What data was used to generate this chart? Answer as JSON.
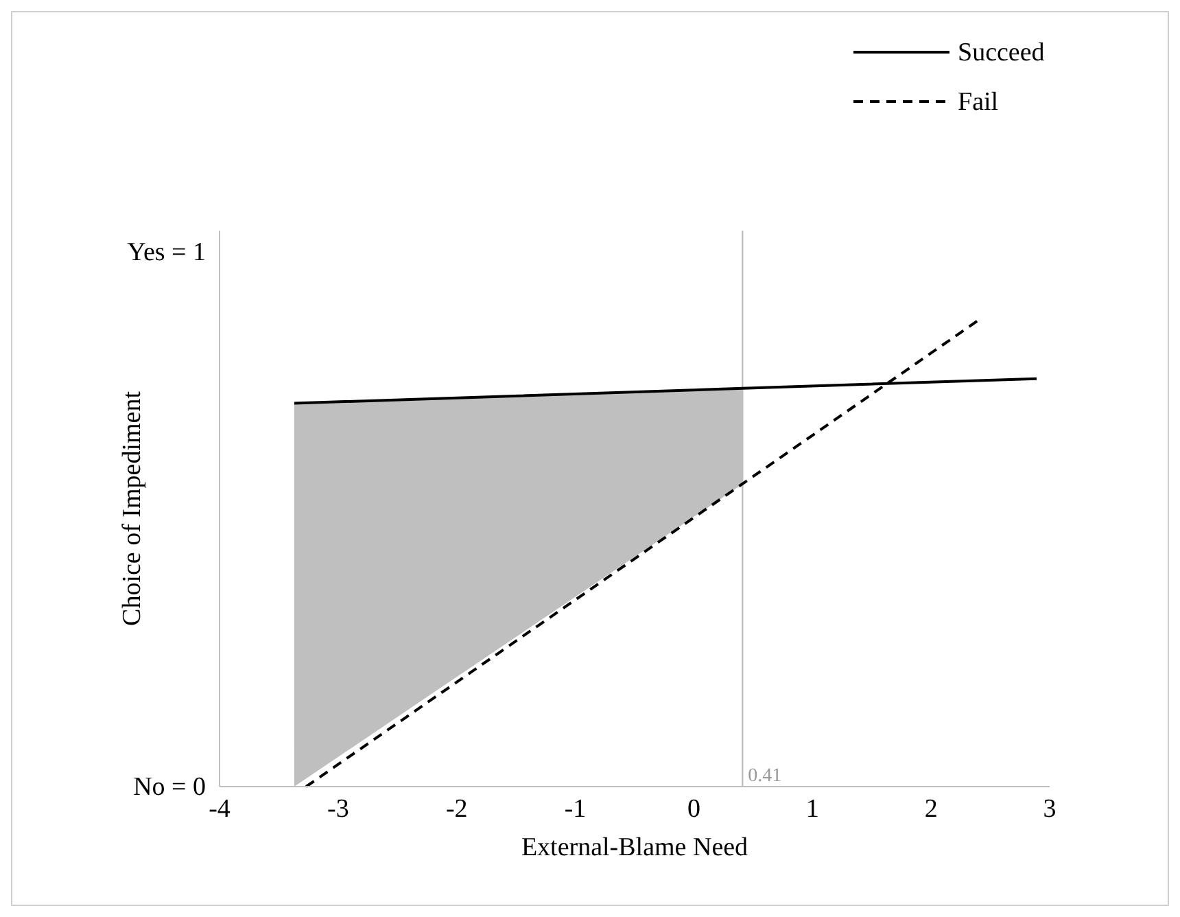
{
  "chart_data": {
    "type": "line",
    "xlabel": "External-Blame Need",
    "ylabel": "Choice of Impediment",
    "xlim": [
      -4,
      3
    ],
    "xticks": [
      -4,
      -3,
      -2,
      -1,
      0,
      1,
      2,
      3
    ],
    "ylim": [
      0,
      1.04
    ],
    "yticks": [
      {
        "value": 0,
        "label": "No = 0"
      },
      {
        "value": 1,
        "label": "Yes = 1"
      }
    ],
    "grid": false,
    "legend": "top right",
    "marker": "none",
    "series": [
      {
        "name": "Succeed",
        "color": "#000000",
        "line_style": "solid",
        "x": [
          -3.37,
          0.41,
          2.89
        ],
        "values": [
          0.717,
          0.745,
          0.763
        ],
        "lower": [
          0,
          0.566,
          null
        ],
        "upper": [
          0.717,
          0.745,
          null
        ]
      },
      {
        "name": "Fail",
        "color": "#000000",
        "line_style": "dashed",
        "x": [
          -3.27,
          2.39
        ],
        "values": [
          0,
          0.871
        ]
      }
    ],
    "ref_lines": [
      {
        "axis": "x",
        "value": 0.41,
        "label": "0.41",
        "color": "#bfbfbf"
      }
    ]
  }
}
